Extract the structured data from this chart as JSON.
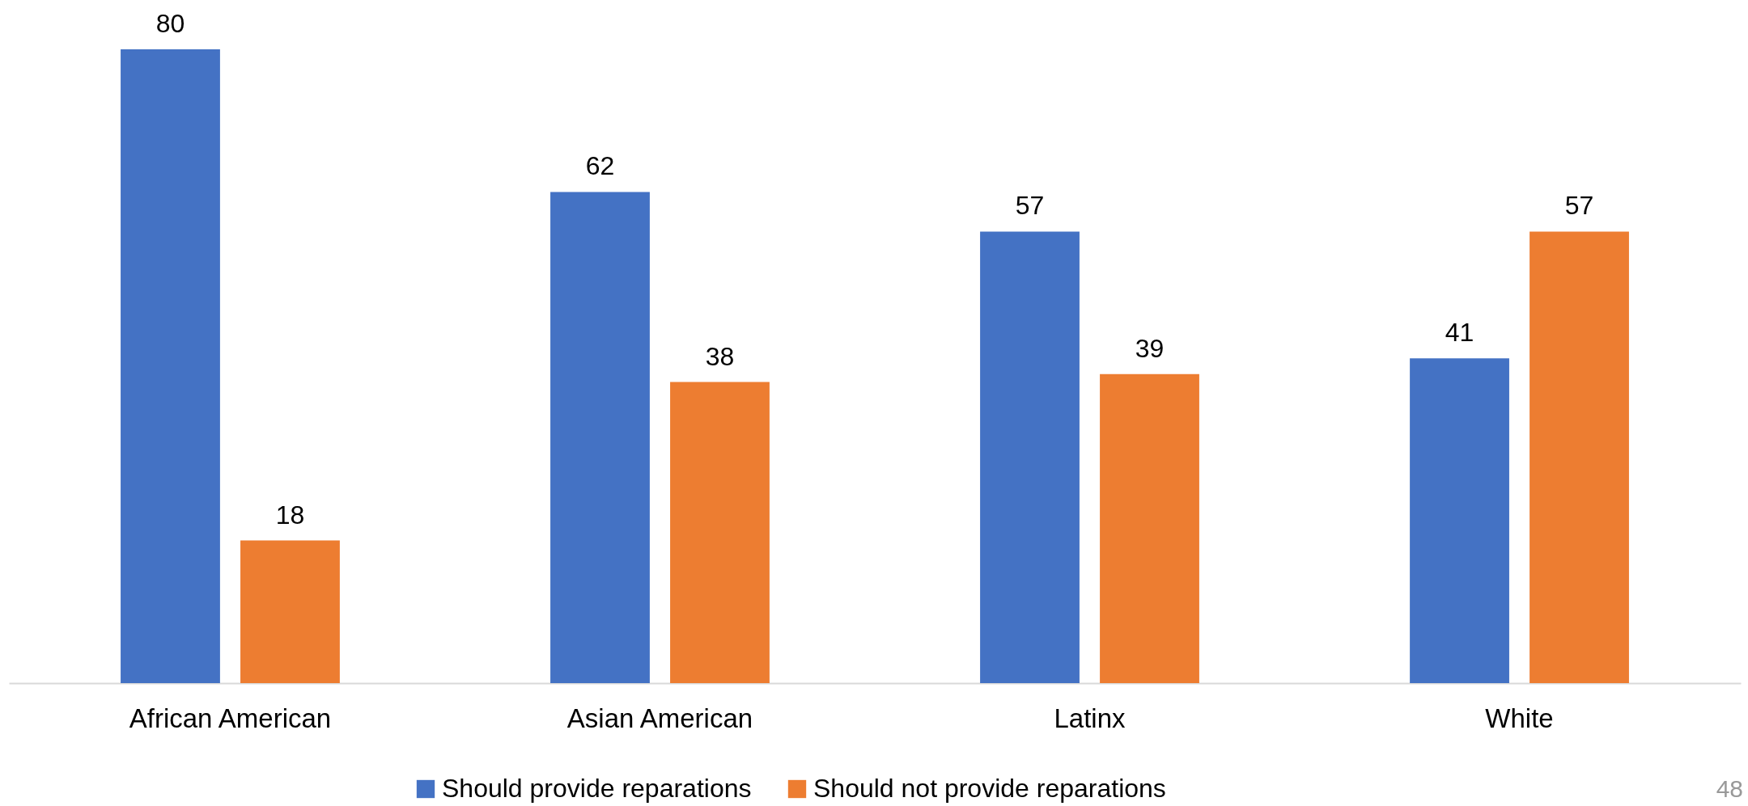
{
  "chart_data": {
    "type": "bar",
    "categories": [
      "African American",
      "Asian American",
      "Latinx",
      "White"
    ],
    "series": [
      {
        "name": "Should provide reparations",
        "color": "#4472c4",
        "values": [
          80,
          62,
          57,
          41
        ]
      },
      {
        "name": "Should not provide reparations",
        "color": "#ed7d31",
        "values": [
          18,
          38,
          39,
          57
        ]
      }
    ],
    "tick_labels": "x",
    "data_labels": true,
    "legend": "bottom",
    "annotations": [
      "48"
    ]
  }
}
